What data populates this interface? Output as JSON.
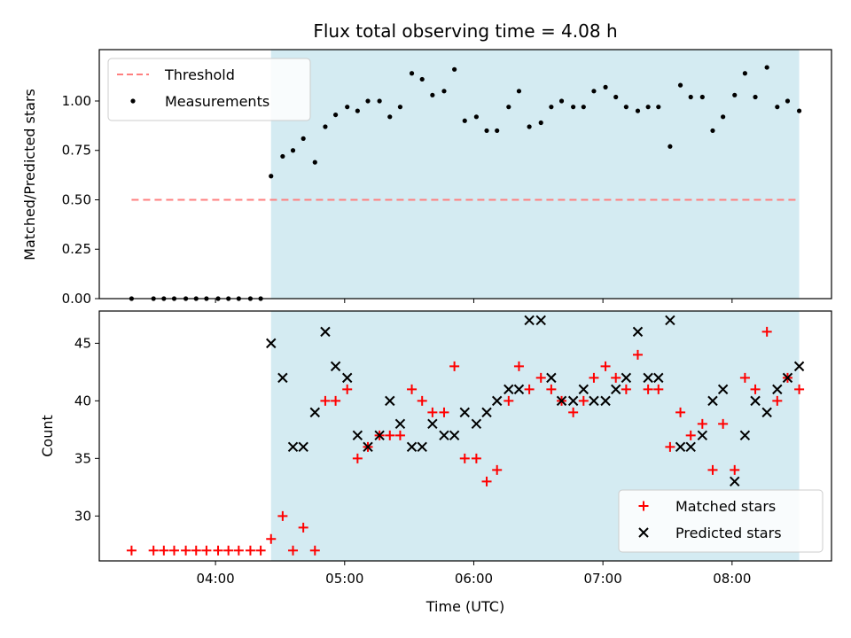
{
  "chart_data": {
    "title": "Flux total observing time = 4.08 h",
    "xlabel": "Time (UTC)",
    "x_unit": "hours UTC",
    "xlim": [
      3.1,
      8.77
    ],
    "xticks": [
      4,
      5,
      6,
      7,
      8
    ],
    "xtick_labels": [
      "04:00",
      "05:00",
      "06:00",
      "07:00",
      "08:00"
    ],
    "highlight_span": [
      4.43,
      8.52
    ],
    "highlight_color": "#add8e6",
    "panels": [
      {
        "type": "scatter",
        "ylabel": "Matched/Predicted stars",
        "ylim": [
          0,
          1.26
        ],
        "yticks": [
          0.0,
          0.25,
          0.5,
          0.75,
          1.0
        ],
        "ytick_labels": [
          "0.00",
          "0.25",
          "0.50",
          "0.75",
          "1.00"
        ],
        "legend_position": "top-left",
        "threshold": {
          "name": "Threshold",
          "y": 0.5,
          "x_range": [
            3.35,
            8.52
          ],
          "color": "#ff7f7f"
        },
        "series": [
          {
            "name": "Measurements",
            "marker": "dot",
            "color": "#000000",
            "points": [
              [
                3.35,
                0.0
              ],
              [
                3.52,
                0.0
              ],
              [
                3.6,
                0.0
              ],
              [
                3.68,
                0.0
              ],
              [
                3.77,
                0.0
              ],
              [
                3.85,
                0.0
              ],
              [
                3.93,
                0.0
              ],
              [
                4.02,
                0.0
              ],
              [
                4.1,
                0.0
              ],
              [
                4.18,
                0.0
              ],
              [
                4.27,
                0.0
              ],
              [
                4.35,
                0.0
              ],
              [
                4.43,
                0.62
              ],
              [
                4.52,
                0.72
              ],
              [
                4.6,
                0.75
              ],
              [
                4.68,
                0.81
              ],
              [
                4.77,
                0.69
              ],
              [
                4.85,
                0.87
              ],
              [
                4.93,
                0.93
              ],
              [
                5.02,
                0.97
              ],
              [
                5.1,
                0.95
              ],
              [
                5.18,
                1.0
              ],
              [
                5.27,
                1.0
              ],
              [
                5.35,
                0.92
              ],
              [
                5.43,
                0.97
              ],
              [
                5.52,
                1.14
              ],
              [
                5.6,
                1.11
              ],
              [
                5.68,
                1.03
              ],
              [
                5.77,
                1.05
              ],
              [
                5.85,
                1.16
              ],
              [
                5.93,
                0.9
              ],
              [
                6.02,
                0.92
              ],
              [
                6.1,
                0.85
              ],
              [
                6.18,
                0.85
              ],
              [
                6.27,
                0.97
              ],
              [
                6.35,
                1.05
              ],
              [
                6.43,
                0.87
              ],
              [
                6.52,
                0.89
              ],
              [
                6.6,
                0.97
              ],
              [
                6.68,
                1.0
              ],
              [
                6.77,
                0.97
              ],
              [
                6.85,
                0.97
              ],
              [
                6.93,
                1.05
              ],
              [
                7.02,
                1.07
              ],
              [
                7.1,
                1.02
              ],
              [
                7.18,
                0.97
              ],
              [
                7.27,
                0.95
              ],
              [
                7.35,
                0.97
              ],
              [
                7.43,
                0.97
              ],
              [
                7.52,
                0.77
              ],
              [
                7.6,
                1.08
              ],
              [
                7.68,
                1.02
              ],
              [
                7.77,
                1.02
              ],
              [
                7.85,
                0.85
              ],
              [
                7.93,
                0.92
              ],
              [
                8.02,
                1.03
              ],
              [
                8.1,
                1.14
              ],
              [
                8.18,
                1.02
              ],
              [
                8.27,
                1.17
              ],
              [
                8.35,
                0.97
              ],
              [
                8.43,
                1.0
              ],
              [
                8.52,
                0.95
              ]
            ]
          }
        ]
      },
      {
        "type": "scatter",
        "ylabel": "Count",
        "ylim": [
          26.1,
          47.8
        ],
        "yticks": [
          30,
          35,
          40,
          45
        ],
        "ytick_labels": [
          "30",
          "35",
          "40",
          "45"
        ],
        "legend_position": "bottom-right",
        "series": [
          {
            "name": "Matched stars",
            "marker": "plus",
            "color": "#ff0000",
            "points": [
              [
                3.35,
                27
              ],
              [
                3.52,
                27
              ],
              [
                3.6,
                27
              ],
              [
                3.68,
                27
              ],
              [
                3.77,
                27
              ],
              [
                3.85,
                27
              ],
              [
                3.93,
                27
              ],
              [
                4.02,
                27
              ],
              [
                4.1,
                27
              ],
              [
                4.18,
                27
              ],
              [
                4.27,
                27
              ],
              [
                4.35,
                27
              ],
              [
                4.43,
                28
              ],
              [
                4.52,
                30
              ],
              [
                4.6,
                27
              ],
              [
                4.68,
                29
              ],
              [
                4.77,
                27
              ],
              [
                4.85,
                40
              ],
              [
                4.93,
                40
              ],
              [
                5.02,
                41
              ],
              [
                5.1,
                35
              ],
              [
                5.18,
                36
              ],
              [
                5.27,
                37
              ],
              [
                5.35,
                37
              ],
              [
                5.43,
                37
              ],
              [
                5.52,
                41
              ],
              [
                5.6,
                40
              ],
              [
                5.68,
                39
              ],
              [
                5.77,
                39
              ],
              [
                5.85,
                43
              ],
              [
                5.93,
                35
              ],
              [
                6.02,
                35
              ],
              [
                6.1,
                33
              ],
              [
                6.18,
                34
              ],
              [
                6.27,
                40
              ],
              [
                6.35,
                43
              ],
              [
                6.43,
                41
              ],
              [
                6.52,
                42
              ],
              [
                6.6,
                41
              ],
              [
                6.68,
                40
              ],
              [
                6.77,
                39
              ],
              [
                6.85,
                40
              ],
              [
                6.93,
                42
              ],
              [
                7.02,
                43
              ],
              [
                7.1,
                42
              ],
              [
                7.18,
                41
              ],
              [
                7.27,
                44
              ],
              [
                7.35,
                41
              ],
              [
                7.43,
                41
              ],
              [
                7.52,
                36
              ],
              [
                7.6,
                39
              ],
              [
                7.68,
                37
              ],
              [
                7.77,
                38
              ],
              [
                7.85,
                34
              ],
              [
                7.93,
                38
              ],
              [
                8.02,
                34
              ],
              [
                8.1,
                42
              ],
              [
                8.18,
                41
              ],
              [
                8.27,
                46
              ],
              [
                8.35,
                40
              ],
              [
                8.43,
                42
              ],
              [
                8.52,
                41
              ]
            ]
          },
          {
            "name": "Predicted stars",
            "marker": "x",
            "color": "#000000",
            "points": [
              [
                4.43,
                45
              ],
              [
                4.52,
                42
              ],
              [
                4.6,
                36
              ],
              [
                4.68,
                36
              ],
              [
                4.77,
                39
              ],
              [
                4.85,
                46
              ],
              [
                4.93,
                43
              ],
              [
                5.02,
                42
              ],
              [
                5.1,
                37
              ],
              [
                5.18,
                36
              ],
              [
                5.27,
                37
              ],
              [
                5.35,
                40
              ],
              [
                5.43,
                38
              ],
              [
                5.52,
                36
              ],
              [
                5.6,
                36
              ],
              [
                5.68,
                38
              ],
              [
                5.77,
                37
              ],
              [
                5.85,
                37
              ],
              [
                5.93,
                39
              ],
              [
                6.02,
                38
              ],
              [
                6.1,
                39
              ],
              [
                6.18,
                40
              ],
              [
                6.27,
                41
              ],
              [
                6.35,
                41
              ],
              [
                6.43,
                47
              ],
              [
                6.52,
                47
              ],
              [
                6.6,
                42
              ],
              [
                6.68,
                40
              ],
              [
                6.77,
                40
              ],
              [
                6.85,
                41
              ],
              [
                6.93,
                40
              ],
              [
                7.02,
                40
              ],
              [
                7.1,
                41
              ],
              [
                7.18,
                42
              ],
              [
                7.27,
                46
              ],
              [
                7.35,
                42
              ],
              [
                7.43,
                42
              ],
              [
                7.52,
                47
              ],
              [
                7.6,
                36
              ],
              [
                7.68,
                36
              ],
              [
                7.77,
                37
              ],
              [
                7.85,
                40
              ],
              [
                7.93,
                41
              ],
              [
                8.02,
                33
              ],
              [
                8.1,
                37
              ],
              [
                8.18,
                40
              ],
              [
                8.27,
                39
              ],
              [
                8.35,
                41
              ],
              [
                8.43,
                42
              ],
              [
                8.52,
                43
              ]
            ]
          }
        ]
      }
    ]
  }
}
